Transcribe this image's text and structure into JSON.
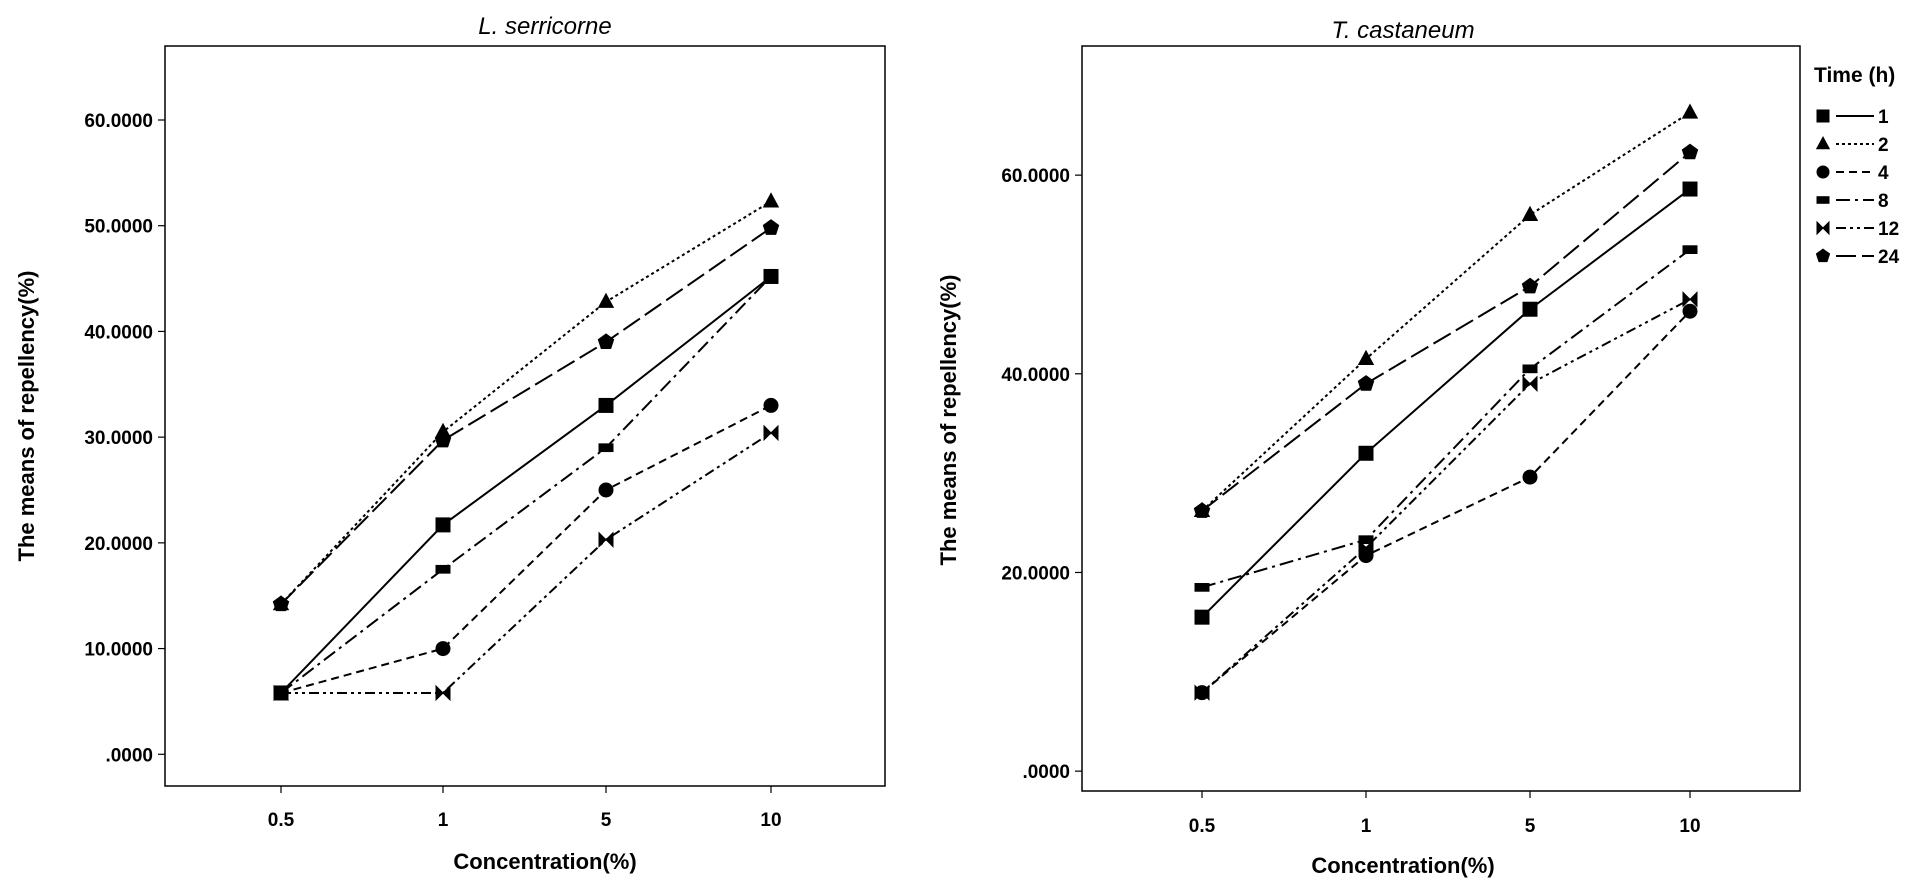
{
  "legend": {
    "title": "Time (h)",
    "position": "right",
    "items": [
      {
        "label": "1",
        "marker": "square",
        "dash": "solid"
      },
      {
        "label": "2",
        "marker": "triangle",
        "dash": "dotted"
      },
      {
        "label": "4",
        "marker": "circle",
        "dash": "dashed"
      },
      {
        "label": "8",
        "marker": "bar",
        "dash": "dashdot"
      },
      {
        "label": "12",
        "marker": "bowtie",
        "dash": "dashdotdot"
      },
      {
        "label": "24",
        "marker": "pentagon",
        "dash": "longdash"
      }
    ]
  },
  "chart_data": [
    {
      "type": "line",
      "title": "L. serricorne",
      "xlabel": "Concentration(%)",
      "ylabel": "The means of  repellency(%)",
      "categories": [
        "0.5",
        "1",
        "5",
        "10"
      ],
      "ylim": [
        -3,
        67
      ],
      "yticks": [
        0,
        10,
        20,
        30,
        40,
        50,
        60
      ],
      "ytick_labels": [
        ".0000",
        "10.0000",
        "20.0000",
        "30.0000",
        "40.0000",
        "50.0000",
        "60.0000"
      ],
      "grid": false,
      "series": [
        {
          "name": "1",
          "values": [
            5.8,
            21.7,
            33.0,
            45.2
          ]
        },
        {
          "name": "2",
          "values": [
            14.2,
            30.5,
            42.8,
            52.3
          ]
        },
        {
          "name": "4",
          "values": [
            5.8,
            10.0,
            25.0,
            33.0
          ]
        },
        {
          "name": "8",
          "values": [
            5.8,
            17.5,
            29.0,
            45.2
          ]
        },
        {
          "name": "12",
          "values": [
            5.8,
            5.8,
            20.3,
            30.4
          ]
        },
        {
          "name": "24",
          "values": [
            14.2,
            29.7,
            39.0,
            49.8
          ]
        }
      ]
    },
    {
      "type": "line",
      "title": "T. castaneum",
      "xlabel": "Concentration(%)",
      "ylabel": "The means of repellency(%)",
      "categories": [
        "0.5",
        "1",
        "5",
        "10"
      ],
      "ylim": [
        -2,
        73
      ],
      "yticks": [
        0,
        20,
        40,
        60
      ],
      "ytick_labels": [
        ".0000",
        "20.0000",
        "40.0000",
        "60.0000"
      ],
      "grid": false,
      "series": [
        {
          "name": "1",
          "values": [
            15.5,
            32.0,
            46.5,
            58.6
          ]
        },
        {
          "name": "2",
          "values": [
            26.2,
            41.5,
            56.0,
            66.3
          ]
        },
        {
          "name": "4",
          "values": [
            7.9,
            21.7,
            29.6,
            46.3
          ]
        },
        {
          "name": "8",
          "values": [
            18.5,
            23.3,
            40.5,
            52.5
          ]
        },
        {
          "name": "12",
          "values": [
            7.9,
            22.5,
            39.0,
            47.5
          ]
        },
        {
          "name": "24",
          "values": [
            26.2,
            39.0,
            48.8,
            62.3
          ]
        }
      ]
    }
  ]
}
